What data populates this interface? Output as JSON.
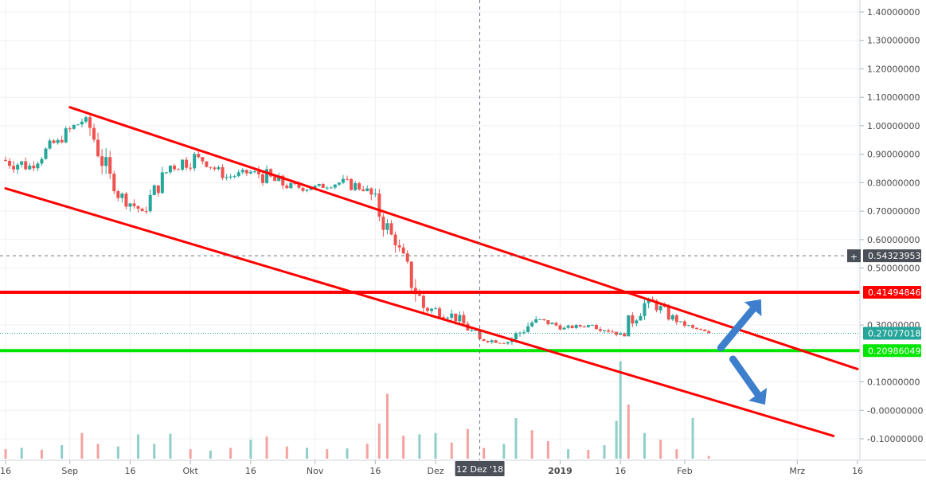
{
  "chart_data": {
    "type": "candlestick",
    "y_axis": {
      "min": -0.14,
      "max": 1.44,
      "position": "right",
      "tick_values": [
        1.4,
        1.3,
        1.2,
        1.1,
        1.0,
        0.9,
        0.8,
        0.7,
        0.6,
        0.5,
        0.3,
        0.1,
        -0.0,
        -0.1
      ],
      "tick_labels": [
        "1.40000000",
        "1.30000000",
        "1.20000000",
        "1.10000000",
        "1.00000000",
        "0.90000000",
        "0.80000000",
        "0.70000000",
        "0.60000000",
        "0.50000000",
        "0.30000000",
        "0.10000000",
        "-0.00000000",
        "-0.10000000"
      ]
    },
    "x_axis": {
      "start": "2018-08-16",
      "end": "2019-03-16",
      "tick_labels": [
        {
          "date": "2018-08-16",
          "label": "16",
          "bold": false
        },
        {
          "date": "2018-09-01",
          "label": "Sep",
          "bold": false
        },
        {
          "date": "2018-09-16",
          "label": "16",
          "bold": false
        },
        {
          "date": "2018-10-01",
          "label": "Okt",
          "bold": false
        },
        {
          "date": "2018-10-16",
          "label": "16",
          "bold": false
        },
        {
          "date": "2018-11-01",
          "label": "Nov",
          "bold": false
        },
        {
          "date": "2018-11-16",
          "label": "16",
          "bold": false
        },
        {
          "date": "2018-12-01",
          "label": "Dez",
          "bold": false
        },
        {
          "date": "2019-01-01",
          "label": "2019",
          "bold": true
        },
        {
          "date": "2019-01-16",
          "label": "16",
          "bold": false
        },
        {
          "date": "2019-02-01",
          "label": "Feb",
          "bold": false
        },
        {
          "date": "2019-03-01",
          "label": "Mrz",
          "bold": false
        },
        {
          "date": "2019-03-16",
          "label": "16",
          "bold": false
        }
      ]
    },
    "crosshair": {
      "date": "2018-12-12",
      "date_label": "12 Dez '18",
      "price": 0.54323953,
      "price_label": "0.54323953"
    },
    "price_tags": [
      {
        "value": 0.41494846,
        "label": "0.41494846",
        "color": "#ff0000",
        "line": true
      },
      {
        "value": 0.27077018,
        "label": "0.27077018",
        "color": "#26a69a",
        "line": false
      },
      {
        "value": 0.20986049,
        "label": "0.20986049",
        "color": "#00e600",
        "line": true
      }
    ],
    "trendlines": [
      {
        "name": "upper-channel",
        "color": "#ff0000",
        "points": [
          {
            "date": "2018-09-01",
            "value": 1.065
          },
          {
            "date": "2019-03-16",
            "value": 0.145
          }
        ]
      },
      {
        "name": "lower-channel",
        "color": "#ff0000",
        "points": [
          {
            "date": "2018-08-16",
            "value": 0.78
          },
          {
            "date": "2019-03-10",
            "value": -0.09
          }
        ]
      }
    ],
    "arrows": [
      {
        "direction": "up",
        "color": "#3d7fcc",
        "from": {
          "date": "2019-02-10",
          "value": 0.22
        },
        "to": {
          "date": "2019-02-20",
          "value": 0.39
        }
      },
      {
        "direction": "down",
        "color": "#3d7fcc",
        "from": {
          "date": "2019-02-13",
          "value": 0.18
        },
        "to": {
          "date": "2019-02-21",
          "value": 0.02
        }
      }
    ],
    "candles_weekly_summary": [
      {
        "date": "2018-08-16",
        "open": 0.88,
        "high": 1.0,
        "low": 0.83,
        "close": 0.86
      },
      {
        "date": "2018-08-23",
        "open": 0.86,
        "high": 0.98,
        "low": 0.84,
        "close": 0.95
      },
      {
        "date": "2018-08-30",
        "open": 0.95,
        "high": 1.065,
        "low": 0.93,
        "close": 1.03
      },
      {
        "date": "2018-09-06",
        "open": 1.03,
        "high": 1.04,
        "low": 0.76,
        "close": 0.77
      },
      {
        "date": "2018-09-13",
        "open": 0.77,
        "high": 0.8,
        "low": 0.66,
        "close": 0.7
      },
      {
        "date": "2018-09-20",
        "open": 0.7,
        "high": 0.88,
        "low": 0.69,
        "close": 0.86
      },
      {
        "date": "2018-09-27",
        "open": 0.86,
        "high": 1.02,
        "low": 0.84,
        "close": 0.89
      },
      {
        "date": "2018-10-04",
        "open": 0.89,
        "high": 0.9,
        "low": 0.8,
        "close": 0.82
      },
      {
        "date": "2018-10-11",
        "open": 0.82,
        "high": 0.86,
        "low": 0.78,
        "close": 0.84
      },
      {
        "date": "2018-10-18",
        "open": 0.84,
        "high": 0.93,
        "low": 0.76,
        "close": 0.79
      },
      {
        "date": "2018-10-25",
        "open": 0.79,
        "high": 0.82,
        "low": 0.74,
        "close": 0.78
      },
      {
        "date": "2018-11-01",
        "open": 0.78,
        "high": 0.83,
        "low": 0.76,
        "close": 0.8
      },
      {
        "date": "2018-11-08",
        "open": 0.8,
        "high": 0.89,
        "low": 0.77,
        "close": 0.78
      },
      {
        "date": "2018-11-15",
        "open": 0.78,
        "high": 0.79,
        "low": 0.55,
        "close": 0.58
      },
      {
        "date": "2018-11-22",
        "open": 0.58,
        "high": 0.6,
        "low": 0.33,
        "close": 0.36
      },
      {
        "date": "2018-11-29",
        "open": 0.36,
        "high": 0.42,
        "low": 0.3,
        "close": 0.34
      },
      {
        "date": "2018-12-06",
        "open": 0.34,
        "high": 0.36,
        "low": 0.24,
        "close": 0.25
      },
      {
        "date": "2018-12-13",
        "open": 0.25,
        "high": 0.27,
        "low": 0.22,
        "close": 0.24
      },
      {
        "date": "2018-12-20",
        "open": 0.24,
        "high": 0.36,
        "low": 0.23,
        "close": 0.32
      },
      {
        "date": "2018-12-27",
        "open": 0.32,
        "high": 0.33,
        "low": 0.27,
        "close": 0.29
      },
      {
        "date": "2019-01-03",
        "open": 0.29,
        "high": 0.31,
        "low": 0.27,
        "close": 0.3
      },
      {
        "date": "2019-01-10",
        "open": 0.3,
        "high": 0.33,
        "low": 0.26,
        "close": 0.27
      },
      {
        "date": "2019-01-17",
        "open": 0.27,
        "high": 0.43,
        "low": 0.26,
        "close": 0.39
      },
      {
        "date": "2019-01-24",
        "open": 0.39,
        "high": 0.42,
        "low": 0.3,
        "close": 0.31
      },
      {
        "date": "2019-01-31",
        "open": 0.31,
        "high": 0.32,
        "low": 0.27,
        "close": 0.29
      },
      {
        "date": "2019-02-04",
        "open": 0.29,
        "high": 0.3,
        "low": 0.265,
        "close": 0.271
      }
    ],
    "volume_bars": [
      {
        "date": "2018-08-16",
        "value": 0.35,
        "up": false
      },
      {
        "date": "2018-08-20",
        "value": 0.4,
        "up": true
      },
      {
        "date": "2018-08-25",
        "value": 0.33,
        "up": false
      },
      {
        "date": "2018-08-30",
        "value": 0.5,
        "up": true
      },
      {
        "date": "2018-09-04",
        "value": 0.95,
        "up": false
      },
      {
        "date": "2018-09-08",
        "value": 0.55,
        "up": false
      },
      {
        "date": "2018-09-13",
        "value": 0.45,
        "up": true
      },
      {
        "date": "2018-09-18",
        "value": 0.9,
        "up": true
      },
      {
        "date": "2018-09-22",
        "value": 0.55,
        "up": true
      },
      {
        "date": "2018-09-26",
        "value": 0.92,
        "up": true
      },
      {
        "date": "2018-10-01",
        "value": 0.35,
        "up": false
      },
      {
        "date": "2018-10-06",
        "value": 0.3,
        "up": true
      },
      {
        "date": "2018-10-11",
        "value": 0.4,
        "up": false
      },
      {
        "date": "2018-10-16",
        "value": 0.7,
        "up": true
      },
      {
        "date": "2018-10-20",
        "value": 0.82,
        "up": false
      },
      {
        "date": "2018-10-25",
        "value": 0.45,
        "up": false
      },
      {
        "date": "2018-10-30",
        "value": 0.4,
        "up": true
      },
      {
        "date": "2018-11-04",
        "value": 0.35,
        "up": false
      },
      {
        "date": "2018-11-09",
        "value": 0.38,
        "up": true
      },
      {
        "date": "2018-11-14",
        "value": 0.55,
        "up": false
      },
      {
        "date": "2018-11-17",
        "value": 1.3,
        "up": false
      },
      {
        "date": "2018-11-19",
        "value": 2.4,
        "up": false
      },
      {
        "date": "2018-11-23",
        "value": 0.85,
        "up": false
      },
      {
        "date": "2018-11-27",
        "value": 0.9,
        "up": true
      },
      {
        "date": "2018-12-01",
        "value": 0.95,
        "up": true
      },
      {
        "date": "2018-12-05",
        "value": 0.6,
        "up": false
      },
      {
        "date": "2018-12-09",
        "value": 1.1,
        "up": false
      },
      {
        "date": "2018-12-13",
        "value": 0.4,
        "up": false
      },
      {
        "date": "2018-12-18",
        "value": 0.55,
        "up": true
      },
      {
        "date": "2018-12-21",
        "value": 1.5,
        "up": true
      },
      {
        "date": "2018-12-25",
        "value": 1.05,
        "up": false
      },
      {
        "date": "2018-12-29",
        "value": 0.65,
        "up": false
      },
      {
        "date": "2019-01-03",
        "value": 0.35,
        "up": true
      },
      {
        "date": "2019-01-08",
        "value": 0.32,
        "up": false
      },
      {
        "date": "2019-01-12",
        "value": 0.5,
        "up": true
      },
      {
        "date": "2019-01-15",
        "value": 1.4,
        "up": true
      },
      {
        "date": "2019-01-16",
        "value": 3.6,
        "up": true
      },
      {
        "date": "2019-01-18",
        "value": 2.0,
        "up": false
      },
      {
        "date": "2019-01-22",
        "value": 0.95,
        "up": true
      },
      {
        "date": "2019-01-26",
        "value": 0.7,
        "up": false
      },
      {
        "date": "2019-01-30",
        "value": 0.35,
        "up": false
      },
      {
        "date": "2019-02-03",
        "value": 1.5,
        "up": true
      },
      {
        "date": "2019-02-07",
        "value": 0.1,
        "up": false
      }
    ]
  }
}
